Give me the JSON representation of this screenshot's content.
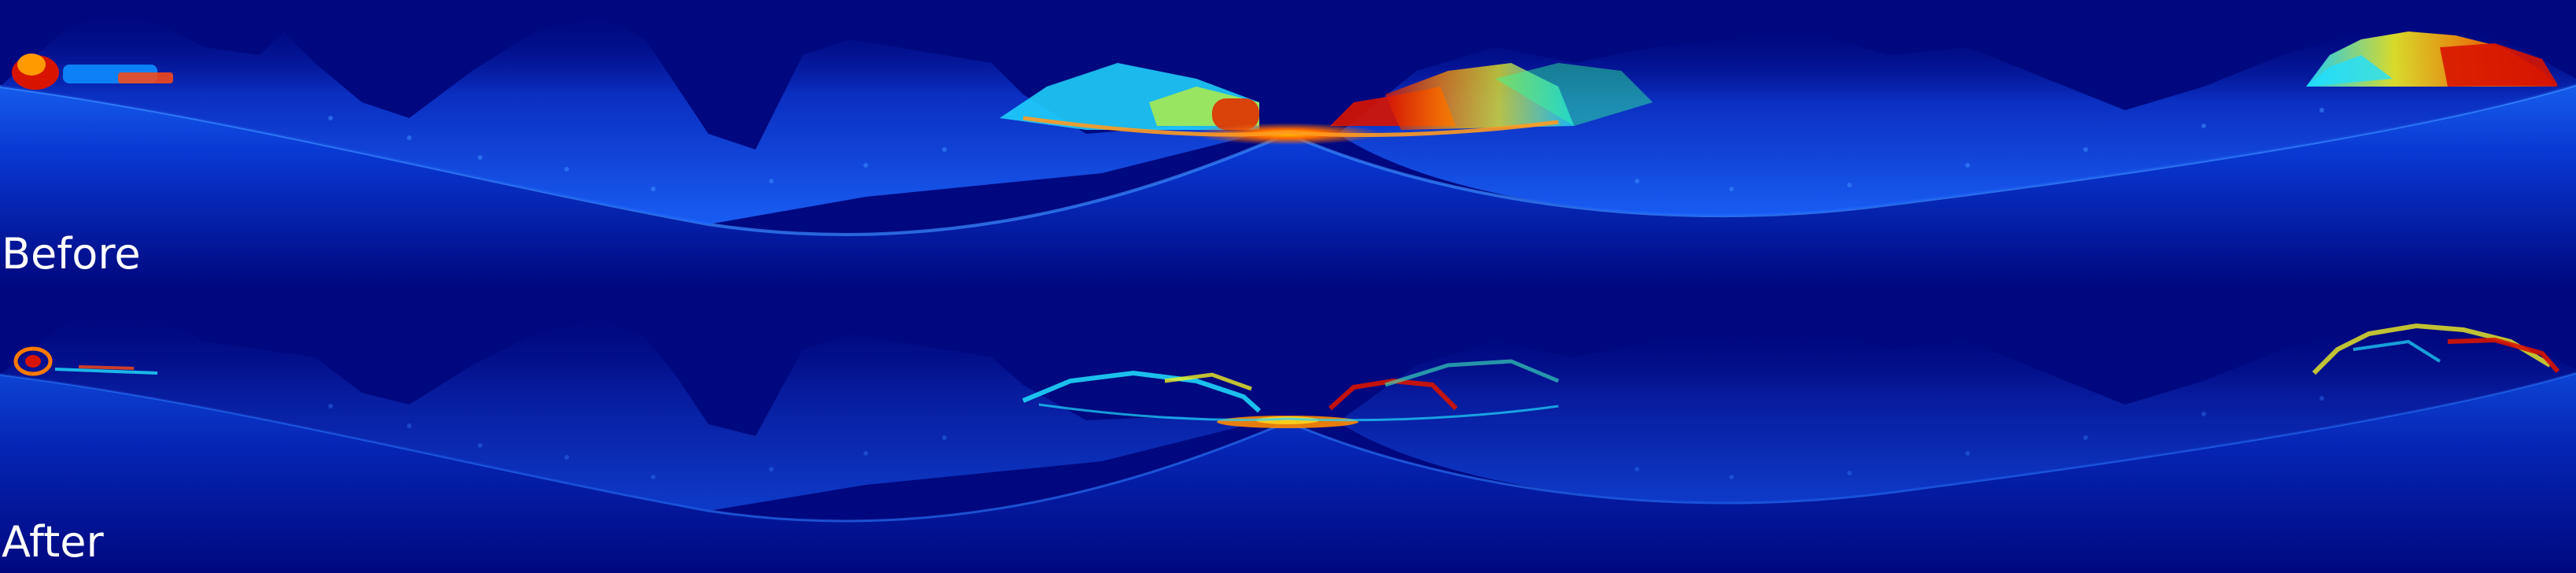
{
  "panels": {
    "top": {
      "caption": "Before"
    },
    "bottom": {
      "caption": "After"
    }
  },
  "colormap": {
    "background": "#00087f",
    "deep_blue": "#0022cc",
    "mid_blue": "#1060ff",
    "cyan": "#20e0ff",
    "yellow": "#f0f020",
    "orange": "#ff8a00",
    "red": "#d81400"
  }
}
